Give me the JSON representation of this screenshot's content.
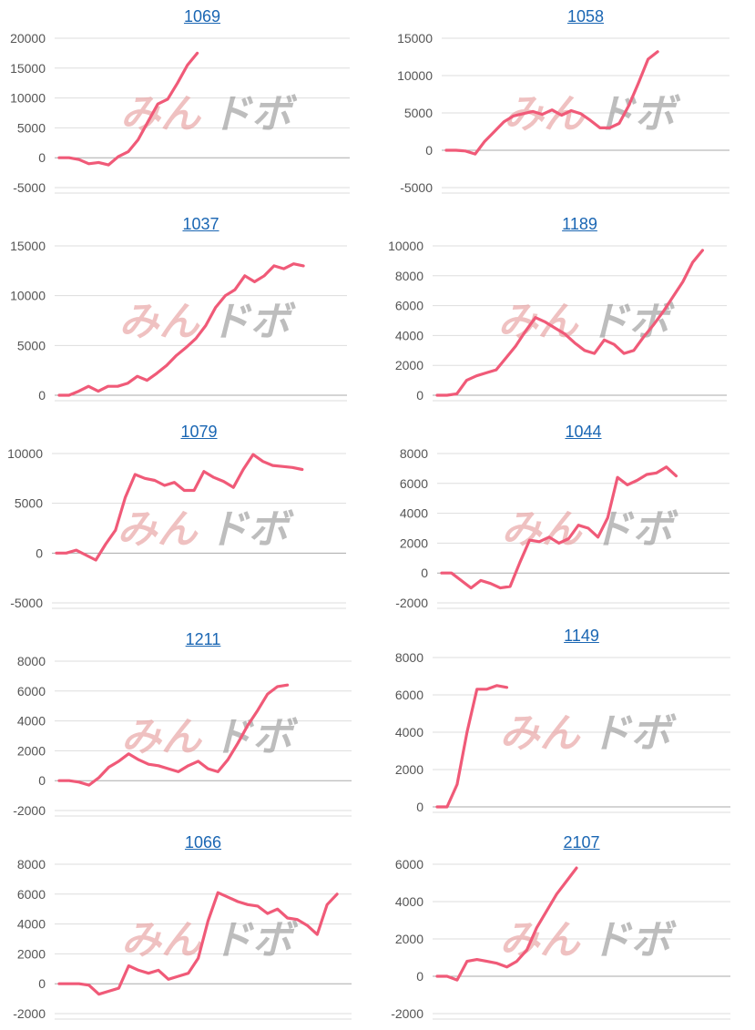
{
  "watermark": {
    "part1": "みん",
    "part2": "ド",
    "part3": "ボ"
  },
  "colors": {
    "line": "#f05a78",
    "grid": "#dddddd",
    "axis": "#aaaaaa",
    "title": "#1a66b3"
  },
  "chart_data": [
    {
      "type": "line",
      "title": "1069",
      "ylim": [
        -5000,
        20000
      ],
      "yticks": [
        -5000,
        0,
        5000,
        10000,
        15000,
        20000
      ],
      "grid": true,
      "npoints": 30,
      "values": [
        0,
        0,
        -300,
        -1000,
        -800,
        -1200,
        200,
        1000,
        3000,
        6000,
        9000,
        9800,
        12500,
        15500,
        17500
      ]
    },
    {
      "type": "line",
      "title": "1058",
      "ylim": [
        -5000,
        15000
      ],
      "yticks": [
        -5000,
        0,
        5000,
        10000,
        15000
      ],
      "grid": true,
      "npoints": 30,
      "values": [
        0,
        0,
        -100,
        -500,
        1200,
        2500,
        3800,
        4600,
        4900,
        5200,
        4800,
        5400,
        4700,
        5300,
        4900,
        4000,
        3000,
        3000,
        3600,
        6000,
        9000,
        12200,
        13200
      ]
    },
    {
      "type": "line",
      "title": "1037",
      "ylim": [
        0,
        15000
      ],
      "yticks": [
        0,
        5000,
        10000,
        15000
      ],
      "grid": true,
      "npoints": 30,
      "values": [
        0,
        0,
        400,
        900,
        400,
        900,
        900,
        1200,
        1900,
        1500,
        2200,
        3000,
        4000,
        4800,
        5700,
        7000,
        8800,
        10000,
        10600,
        12000,
        11400,
        12000,
        13000,
        12700,
        13200,
        13000
      ]
    },
    {
      "type": "line",
      "title": "1189",
      "ylim": [
        0,
        10000
      ],
      "yticks": [
        0,
        2000,
        4000,
        6000,
        8000,
        10000
      ],
      "grid": true,
      "npoints": 30,
      "values": [
        0,
        0,
        100,
        1000,
        1300,
        1500,
        1700,
        2500,
        3300,
        4300,
        5200,
        4900,
        4500,
        4100,
        3500,
        3000,
        2800,
        3700,
        3400,
        2800,
        3000,
        3900,
        4700,
        5600,
        6600,
        7600,
        8900,
        9700
      ]
    },
    {
      "type": "line",
      "title": "1079",
      "ylim": [
        -5000,
        10000
      ],
      "yticks": [
        -5000,
        0,
        5000,
        10000
      ],
      "grid": true,
      "npoints": 30,
      "values": [
        0,
        0,
        300,
        -200,
        -700,
        900,
        2300,
        5600,
        7900,
        7500,
        7300,
        6800,
        7100,
        6300,
        6300,
        8200,
        7600,
        7200,
        6600,
        8400,
        9900,
        9200,
        8800,
        8700,
        8600,
        8400
      ]
    },
    {
      "type": "line",
      "title": "1044",
      "ylim": [
        -2000,
        8000
      ],
      "yticks": [
        -2000,
        0,
        2000,
        4000,
        6000,
        8000
      ],
      "grid": true,
      "npoints": 30,
      "values": [
        0,
        0,
        -500,
        -1000,
        -500,
        -700,
        -1000,
        -900,
        700,
        2200,
        2100,
        2400,
        2000,
        2300,
        3200,
        3000,
        2400,
        3700,
        6400,
        5900,
        6200,
        6600,
        6700,
        7100,
        6500
      ]
    },
    {
      "type": "line",
      "title": "1211",
      "ylim": [
        -2000,
        8000
      ],
      "yticks": [
        -2000,
        0,
        2000,
        4000,
        6000,
        8000
      ],
      "grid": true,
      "npoints": 30,
      "values": [
        0,
        0,
        -100,
        -300,
        200,
        900,
        1300,
        1800,
        1400,
        1100,
        1000,
        800,
        600,
        1000,
        1300,
        800,
        600,
        1400,
        2500,
        3700,
        4700,
        5800,
        6300,
        6400
      ]
    },
    {
      "type": "line",
      "title": "1149",
      "ylim": [
        0,
        8000
      ],
      "yticks": [
        0,
        2000,
        4000,
        6000,
        8000
      ],
      "grid": true,
      "npoints": 30,
      "values": [
        0,
        0,
        1200,
        4000,
        6300,
        6300,
        6500,
        6400
      ]
    },
    {
      "type": "line",
      "title": "1066",
      "ylim": [
        -2000,
        8000
      ],
      "yticks": [
        -2000,
        0,
        2000,
        4000,
        6000,
        8000
      ],
      "grid": true,
      "npoints": 30,
      "values": [
        0,
        0,
        0,
        -100,
        -700,
        -500,
        -300,
        1200,
        900,
        700,
        900,
        300,
        500,
        700,
        1700,
        4200,
        6100,
        5800,
        5500,
        5300,
        5200,
        4700,
        5000,
        4400,
        4300,
        3900,
        3300,
        5300,
        6000
      ]
    },
    {
      "type": "line",
      "title": "2107",
      "ylim": [
        -2000,
        6000
      ],
      "yticks": [
        -2000,
        0,
        2000,
        4000,
        6000
      ],
      "grid": true,
      "npoints": 30,
      "values": [
        0,
        0,
        -200,
        800,
        900,
        800,
        700,
        500,
        800,
        1400,
        2600,
        3500,
        4400,
        5100,
        5800
      ]
    }
  ]
}
